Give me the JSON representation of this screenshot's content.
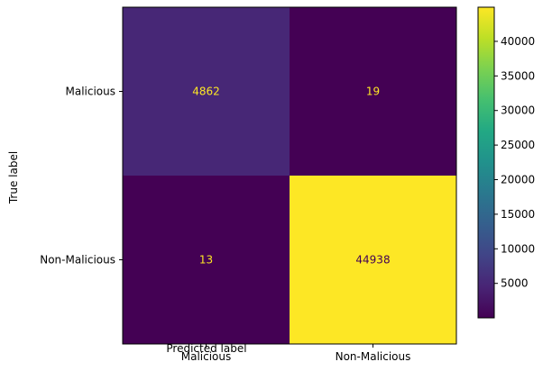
{
  "chart_data": {
    "type": "heatmap",
    "title": "",
    "xlabel": "Predicted label",
    "ylabel": "True label",
    "x_categories": [
      "Malicious",
      "Non-Malicious"
    ],
    "y_categories": [
      "Malicious",
      "Non-Malicious"
    ],
    "values": [
      [
        4862,
        19
      ],
      [
        13,
        44938
      ]
    ],
    "colormap": "viridis",
    "colorbar": {
      "min": 13,
      "max": 44938,
      "ticks": [
        5000,
        10000,
        15000,
        20000,
        25000,
        30000,
        35000,
        40000
      ]
    },
    "text_color_on_dark": "#fde725",
    "text_color_on_light": "#440154"
  }
}
